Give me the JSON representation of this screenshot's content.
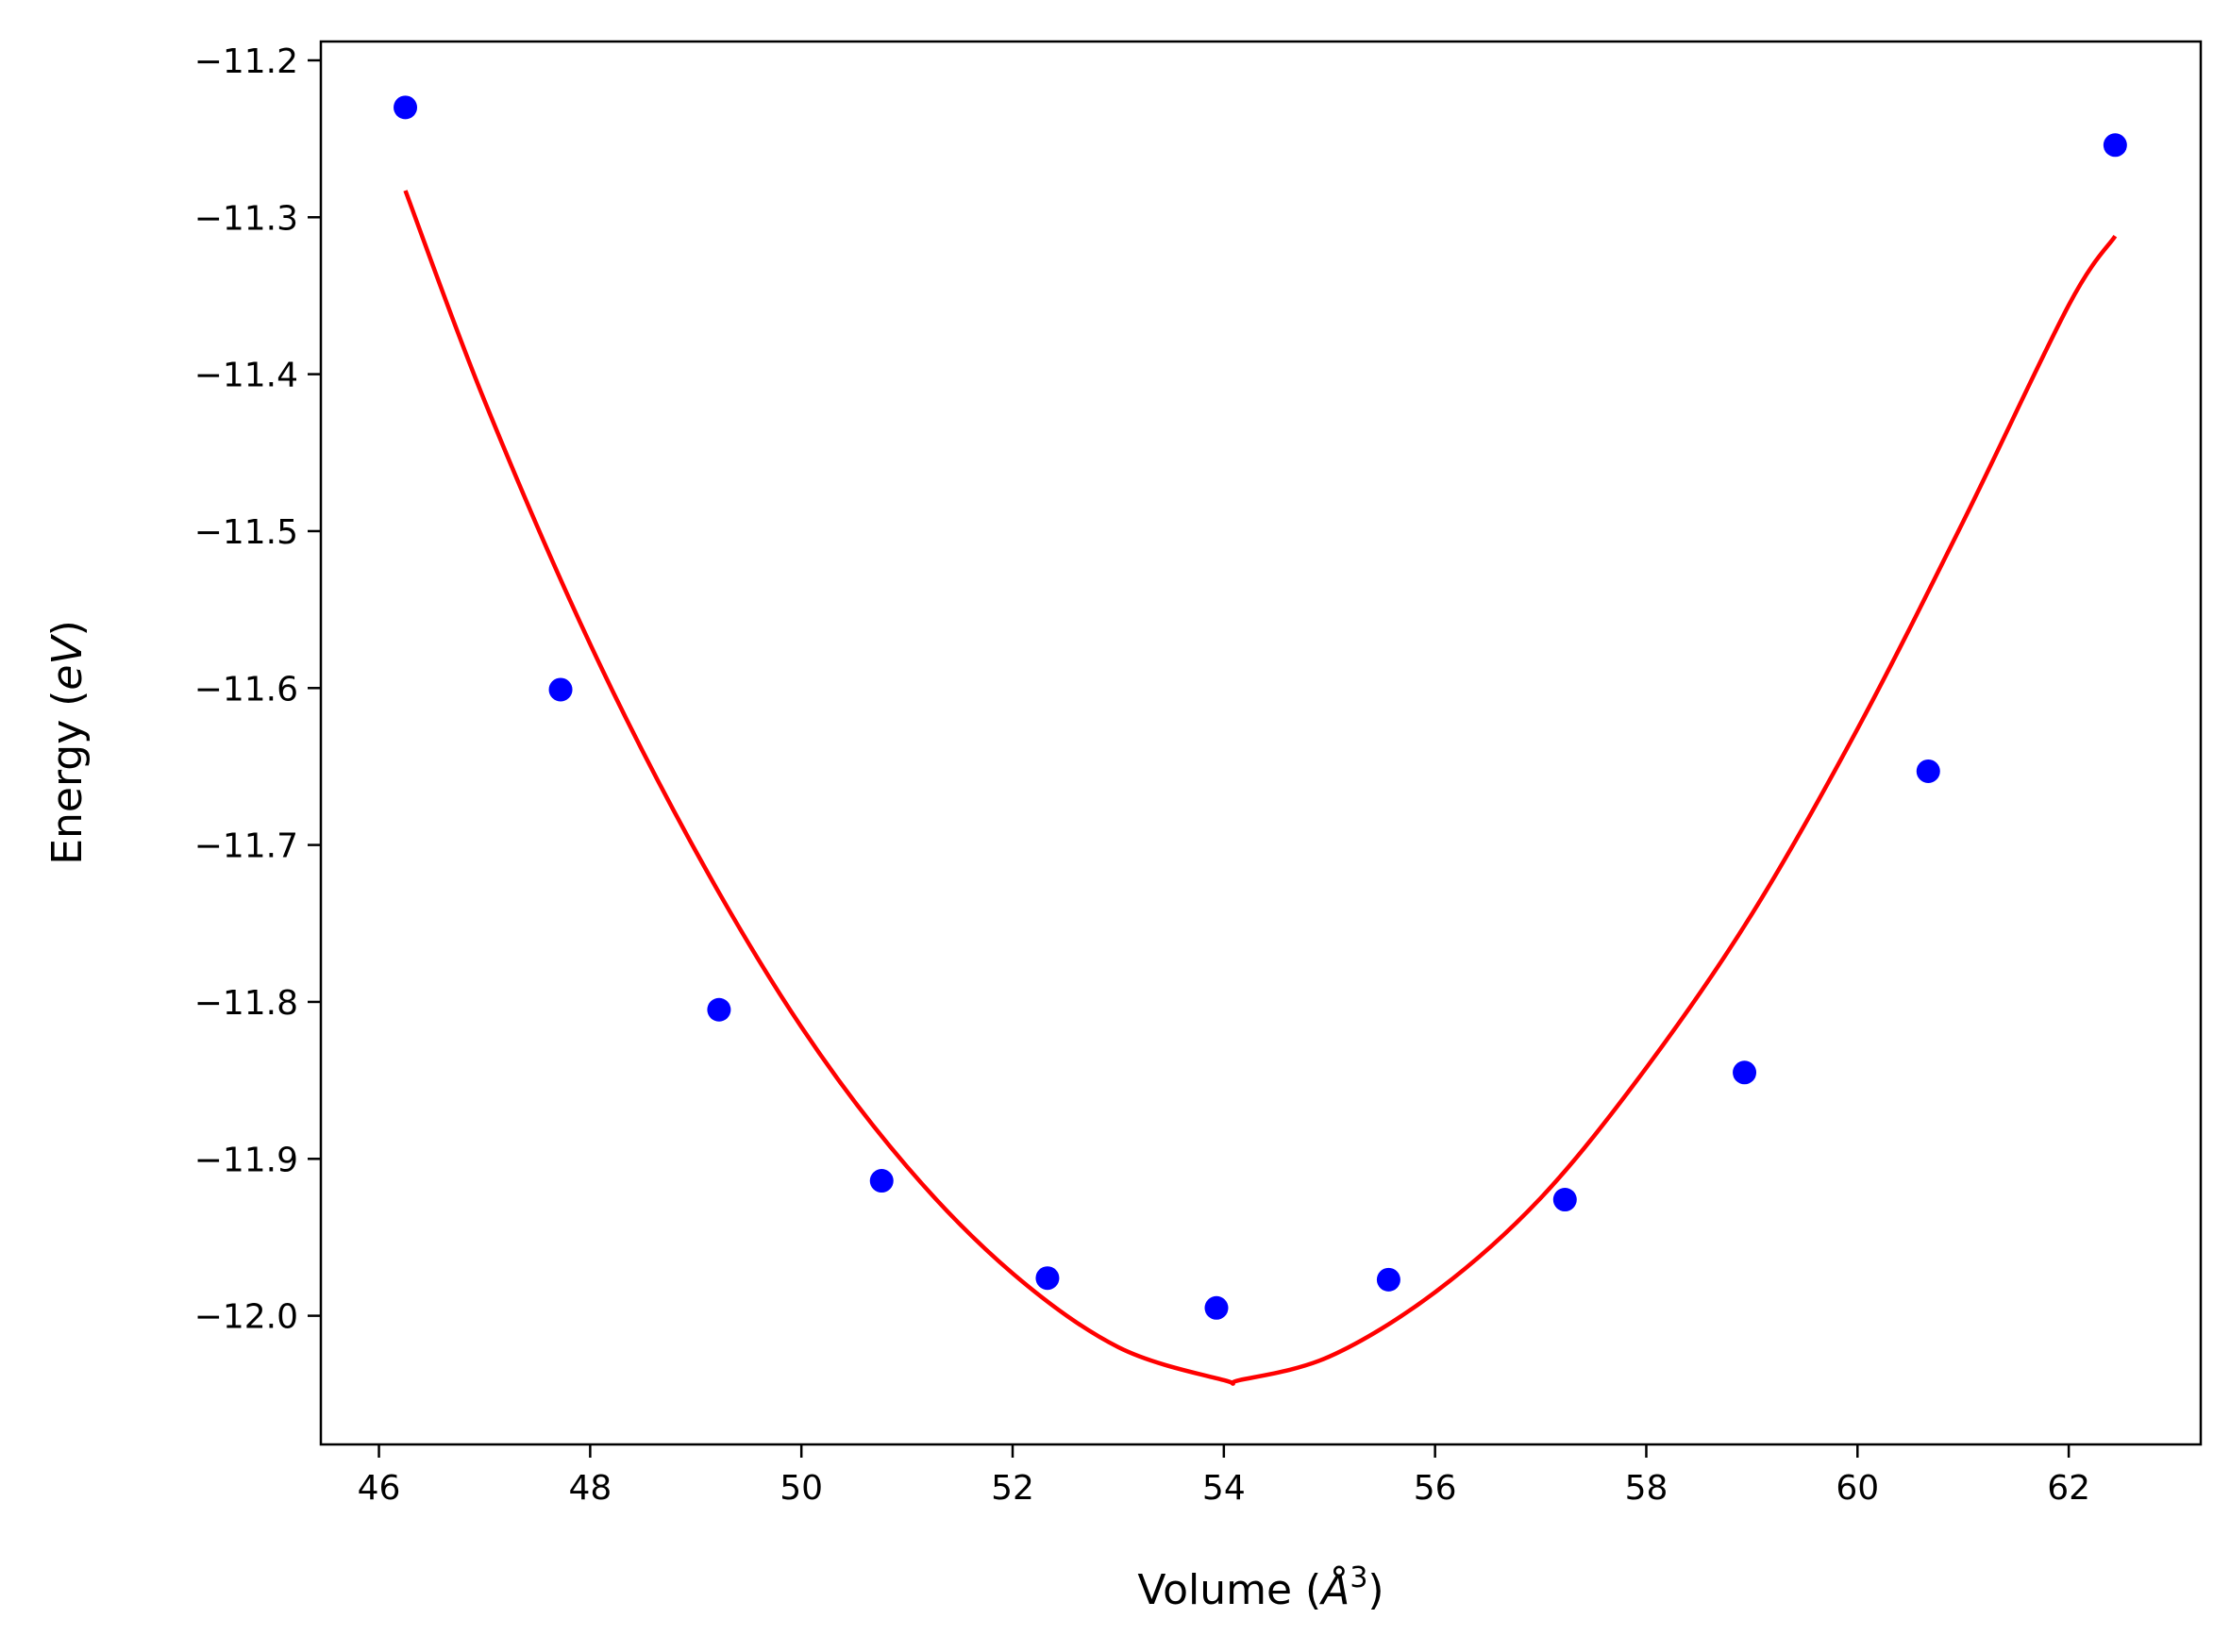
{
  "chart_data": {
    "type": "scatter",
    "xlabel": {
      "prefix": "Volume (",
      "symbol": "Å",
      "superscript": "3",
      "suffix": ")"
    },
    "ylabel": {
      "prefix": "Energy (",
      "symbol": "eV",
      "suffix": ")"
    },
    "xlim": [
      45.45,
      63.25
    ],
    "ylim": [
      -12.082,
      -11.188
    ],
    "xticks": [
      46,
      48,
      50,
      52,
      54,
      56,
      58,
      60,
      62
    ],
    "xtick_labels": [
      "46",
      "48",
      "50",
      "52",
      "54",
      "56",
      "58",
      "60",
      "62"
    ],
    "yticks": [
      -11.2,
      -11.3,
      -11.4,
      -11.5,
      -11.6,
      -11.7,
      -11.8,
      -11.9,
      -12.0
    ],
    "ytick_labels": [
      "−11.2",
      "−11.3",
      "−11.4",
      "−11.5",
      "−11.6",
      "−11.7",
      "−11.8",
      "−11.9",
      "−12.0"
    ],
    "grid": false,
    "series": [
      {
        "kind": "points",
        "color": "#0000ff",
        "x": [
          46.25,
          47.72,
          49.22,
          50.76,
          52.33,
          53.93,
          55.56,
          57.23,
          58.93,
          60.67,
          62.44
        ],
        "y": [
          -11.23,
          -11.601,
          -11.805,
          -11.914,
          -11.976,
          -11.995,
          -11.977,
          -11.926,
          -11.845,
          -11.653,
          -11.254
        ]
      },
      {
        "kind": "fit-line",
        "color": "#ff0000",
        "x": [
          46.25,
          47.0,
          48.0,
          49.0,
          50.0,
          51.0,
          52.0,
          53.0,
          54.0,
          54.15,
          55.0,
          56.0,
          57.0,
          58.0,
          59.0,
          60.0,
          61.0,
          62.0,
          62.44
        ],
        "y": [
          -11.283,
          -11.417,
          -11.572,
          -11.704,
          -11.816,
          -11.905,
          -11.973,
          -12.02,
          -12.041,
          -12.041,
          -12.026,
          -11.985,
          -11.925,
          -11.842,
          -11.744,
          -11.626,
          -11.494,
          -11.356,
          -11.312
        ]
      }
    ]
  }
}
